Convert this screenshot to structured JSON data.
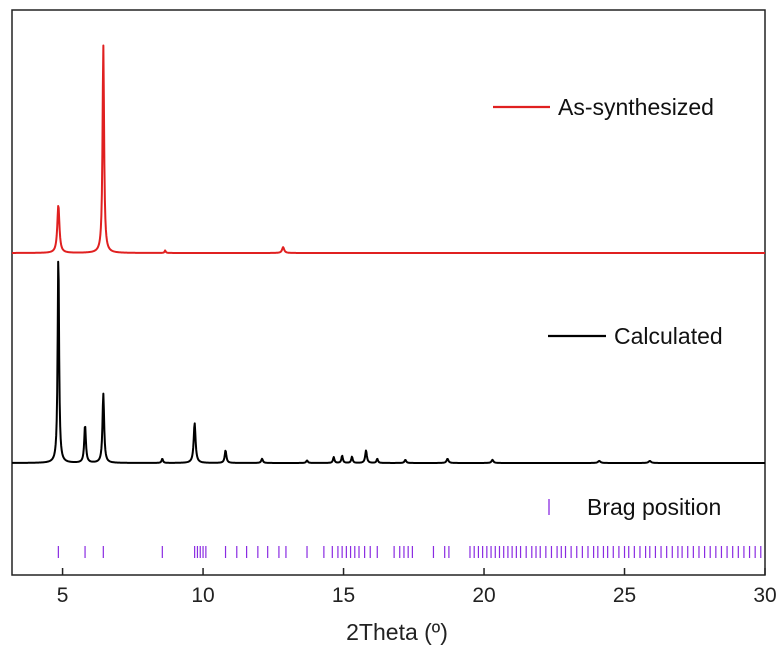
{
  "chart_data": {
    "type": "line",
    "xlabel": "2Theta (º)",
    "ylabel": "",
    "xlim": [
      3.2,
      30
    ],
    "x_ticks": [
      5,
      10,
      15,
      20,
      25,
      30
    ],
    "y_ticks_shown": false,
    "grid": false,
    "legend_placement": "right",
    "series": [
      {
        "name": "As-synthesized",
        "color": "#e02020",
        "baseline": 0,
        "peaks": [
          {
            "x": 4.85,
            "height": 0.23,
            "width": 0.09
          },
          {
            "x": 6.45,
            "height": 1.0,
            "width": 0.065
          },
          {
            "x": 8.65,
            "height": 0.012,
            "width": 0.05
          },
          {
            "x": 12.85,
            "height": 0.028,
            "width": 0.09
          }
        ]
      },
      {
        "name": "Calculated",
        "color": "#000000",
        "baseline": 0,
        "peaks": [
          {
            "x": 4.85,
            "height": 1.0,
            "width": 0.06
          },
          {
            "x": 5.8,
            "height": 0.18,
            "width": 0.07
          },
          {
            "x": 6.45,
            "height": 0.33,
            "width": 0.07
          },
          {
            "x": 8.55,
            "height": 0.02,
            "width": 0.06
          },
          {
            "x": 9.7,
            "height": 0.19,
            "width": 0.08
          },
          {
            "x": 10.8,
            "height": 0.06,
            "width": 0.07
          },
          {
            "x": 12.1,
            "height": 0.02,
            "width": 0.07
          },
          {
            "x": 13.7,
            "height": 0.012,
            "width": 0.07
          },
          {
            "x": 14.65,
            "height": 0.028,
            "width": 0.06
          },
          {
            "x": 14.95,
            "height": 0.035,
            "width": 0.06
          },
          {
            "x": 15.3,
            "height": 0.03,
            "width": 0.06
          },
          {
            "x": 15.8,
            "height": 0.06,
            "width": 0.07
          },
          {
            "x": 16.2,
            "height": 0.02,
            "width": 0.06
          },
          {
            "x": 17.2,
            "height": 0.015,
            "width": 0.07
          },
          {
            "x": 18.7,
            "height": 0.02,
            "width": 0.08
          },
          {
            "x": 20.3,
            "height": 0.015,
            "width": 0.08
          },
          {
            "x": 24.1,
            "height": 0.01,
            "width": 0.1
          },
          {
            "x": 25.9,
            "height": 0.01,
            "width": 0.1
          }
        ]
      },
      {
        "name": "Brag position",
        "color": "#8a2be2",
        "type": "ticks",
        "positions": [
          4.85,
          5.8,
          6.45,
          8.55,
          9.7,
          9.8,
          9.9,
          10.0,
          10.1,
          10.8,
          11.2,
          11.55,
          11.95,
          12.3,
          12.7,
          12.95,
          13.7,
          14.3,
          14.6,
          14.8,
          14.95,
          15.1,
          15.25,
          15.4,
          15.55,
          15.75,
          15.95,
          16.2,
          16.8,
          17.0,
          17.15,
          17.3,
          17.45,
          18.2,
          18.6,
          18.75,
          19.5,
          19.65,
          19.8,
          19.95,
          20.1,
          20.25,
          20.4,
          20.55,
          20.7,
          20.85,
          21.0,
          21.15,
          21.3,
          21.5,
          21.7,
          21.85,
          22.0,
          22.2,
          22.4,
          22.6,
          22.75,
          22.9,
          23.1,
          23.3,
          23.5,
          23.7,
          23.9,
          24.05,
          24.25,
          24.4,
          24.6,
          24.8,
          25.0,
          25.15,
          25.35,
          25.55,
          25.75,
          25.9,
          26.1,
          26.3,
          26.5,
          26.7,
          26.9,
          27.05,
          27.25,
          27.45,
          27.65,
          27.85,
          28.05,
          28.25,
          28.45,
          28.65,
          28.85,
          29.05,
          29.25,
          29.45,
          29.65,
          29.85
        ]
      }
    ]
  }
}
